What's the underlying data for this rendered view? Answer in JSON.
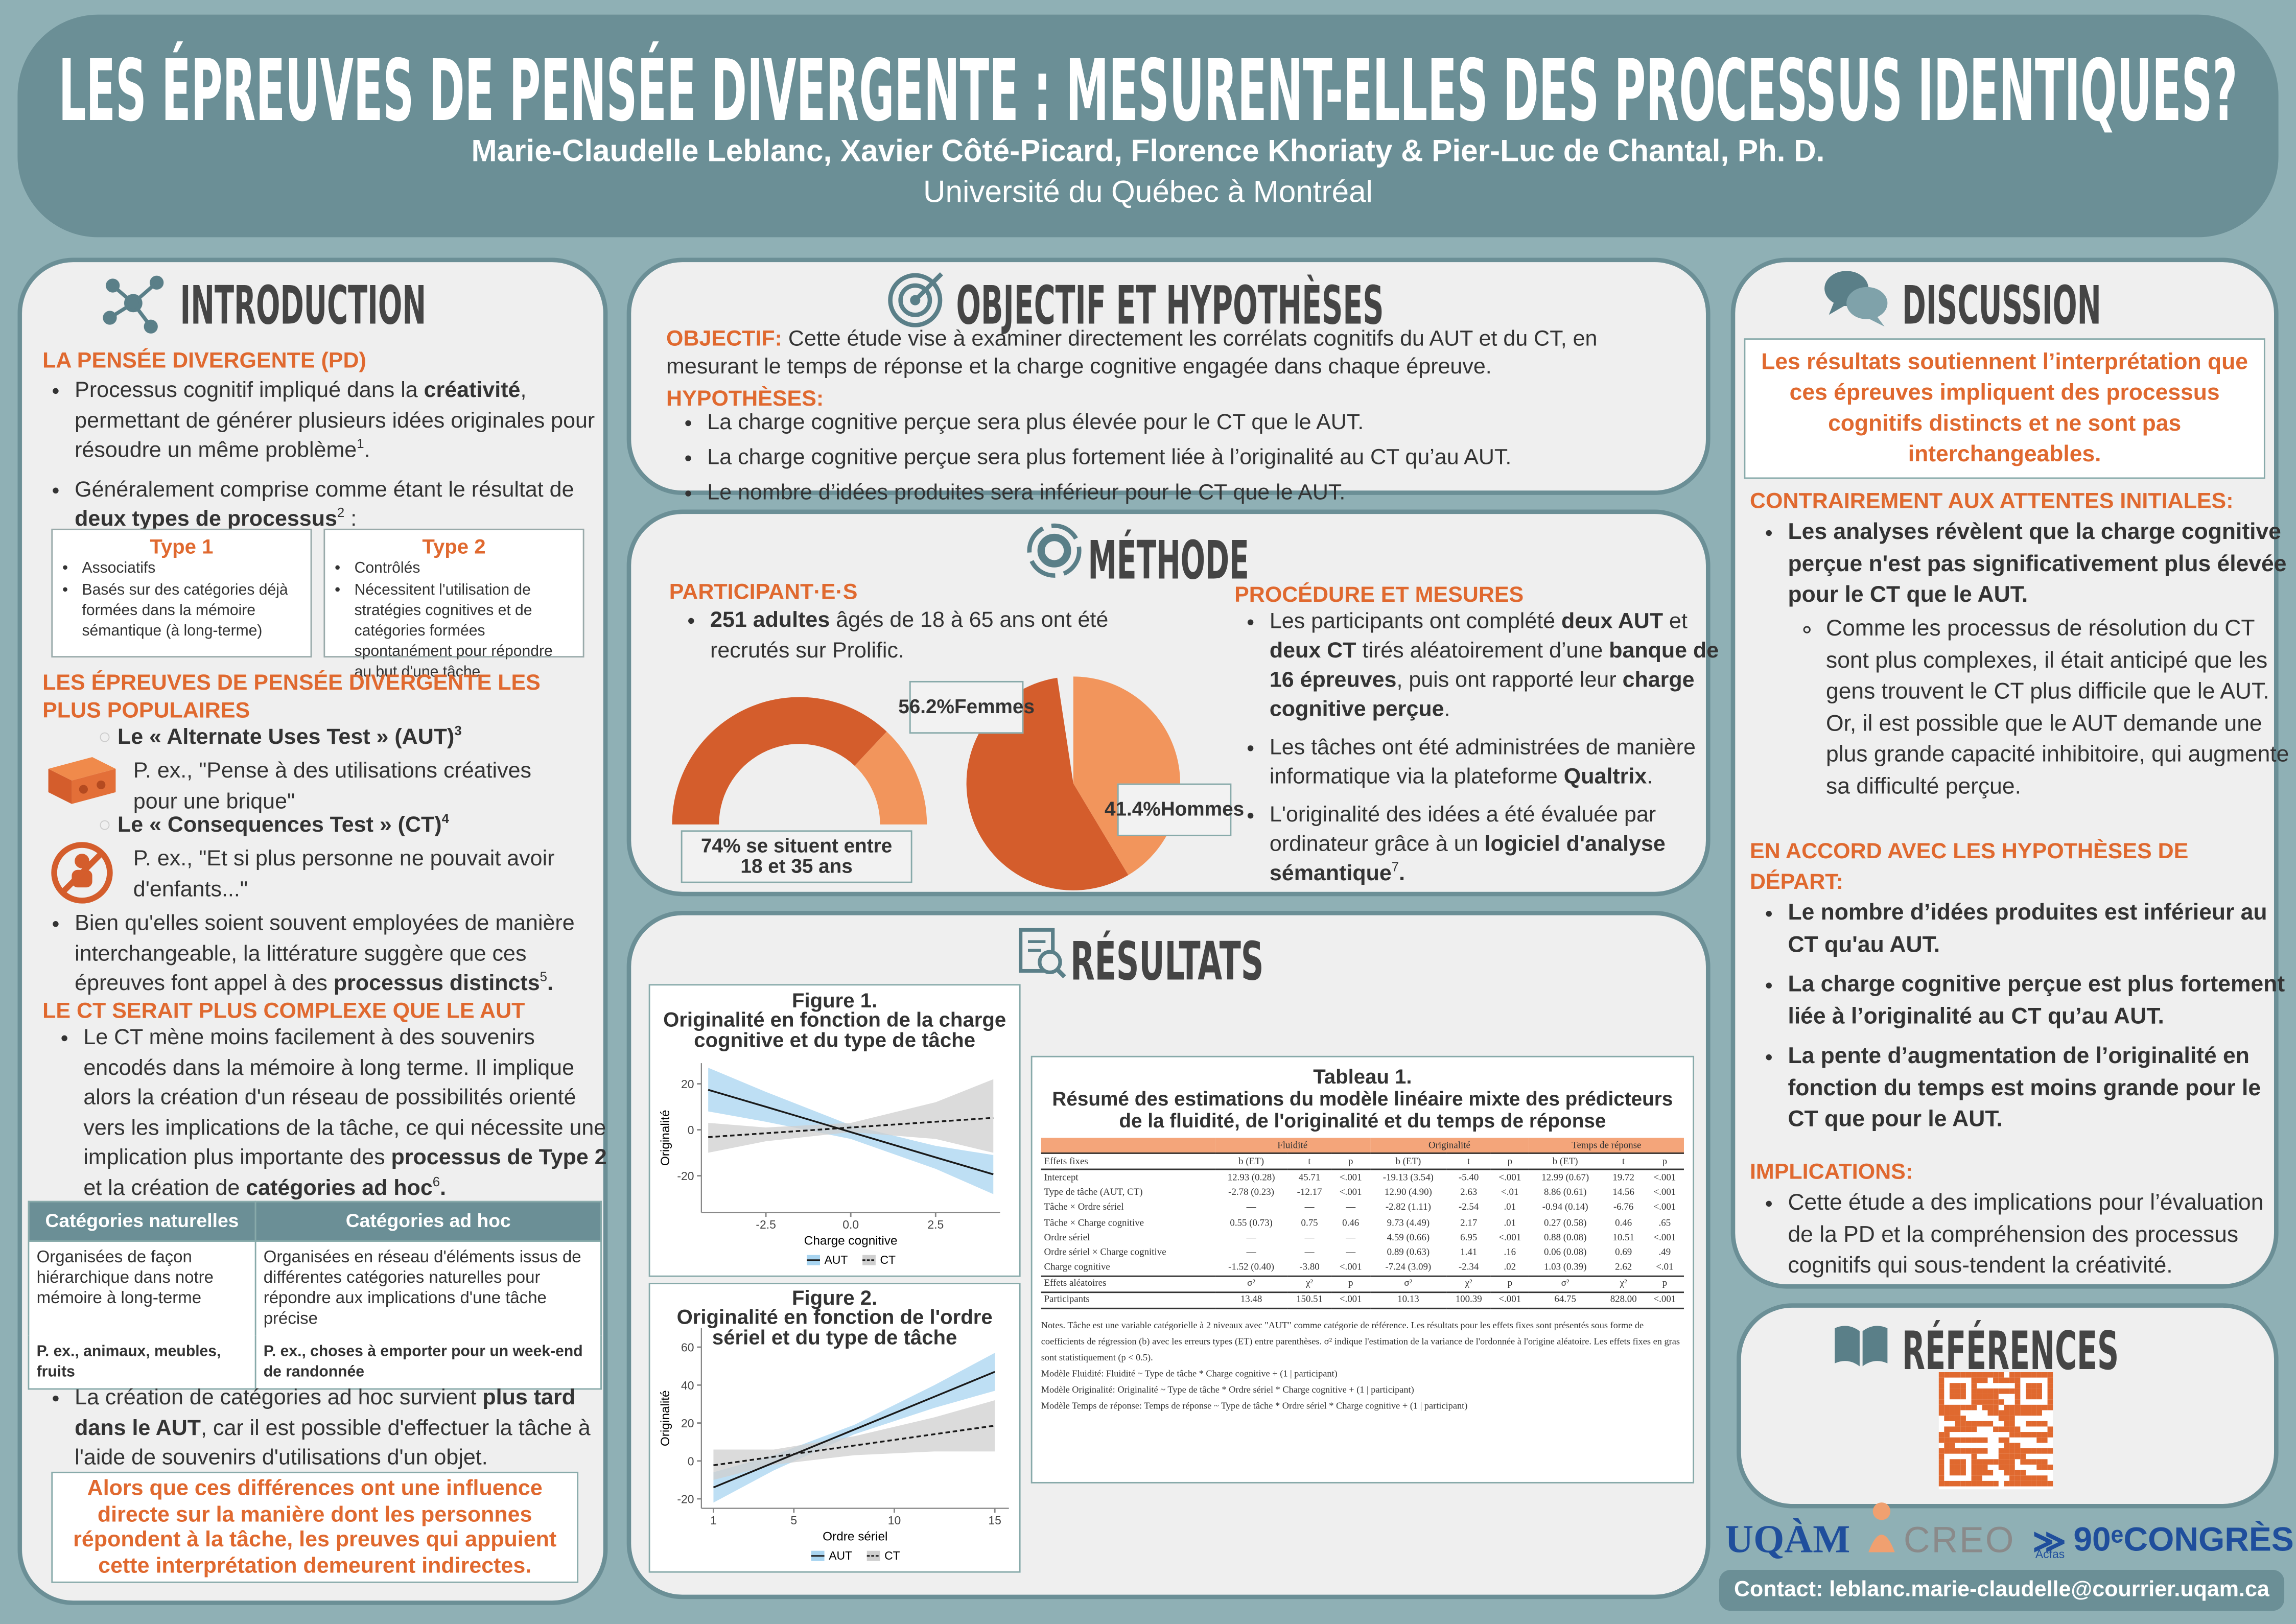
{
  "header": {
    "title": "LES ÉPREUVES DE PENSÉE DIVERGENTE : MESURENT-ELLES DES PROCESSUS IDENTIQUES?",
    "authors": "Marie-Claudelle Leblanc, Xavier Côté-Picard, Florence Khoriaty & Pier-Luc de Chantal, Ph. D.",
    "affiliation": "Université du Québec à Montréal"
  },
  "introduction": {
    "heading": "INTRODUCTION",
    "pd_heading": "LA PENSÉE DIVERGENTE (PD)",
    "pd_bullets": [
      [
        "Processus cognitif impliqué dans la ",
        {
          "b": "créativité"
        },
        ", permettant de générer plusieurs idées originales pour résoudre un même problème",
        {
          "sup": "1"
        },
        "."
      ],
      [
        "Généralement comprise comme étant le résultat  de ",
        {
          "b": "deux types de processus"
        },
        {
          "sup": "2"
        },
        " :"
      ]
    ],
    "types": [
      {
        "title": "Type 1",
        "items": [
          "Associatifs",
          "Basés sur des catégories déjà formées dans la mémoire sémantique (à long-terme)"
        ]
      },
      {
        "title": "Type 2",
        "items": [
          "Contrôlés",
          "Nécessitent l'utilisation de stratégies cognitives et de catégories formées spontanément pour répondre au but d'une tâche"
        ]
      }
    ],
    "tests_heading": "LES ÉPREUVES DE PENSÉE DIVERGENTE LES PLUS POPULAIRES",
    "tests": [
      {
        "name": [
          "Le « Alternate Uses Test » (AUT)",
          {
            "sup": "3"
          }
        ],
        "example": "P. ex., \"Pense à des utilisations créatives pour une brique\""
      },
      {
        "name": [
          "Le « Consequences Test » (CT)",
          {
            "sup": "4"
          }
        ],
        "example": "P. ex., \"Et si plus personne ne pouvait avoir d'enfants...\""
      }
    ],
    "tests_bullet": [
      [
        "Bien qu'elles soient souvent employées de manière interchangeable, la littérature suggère que ces épreuves font appel à des ",
        {
          "b": "processus distincts"
        },
        {
          "sup": "5"
        },
        {
          "b": "."
        }
      ]
    ],
    "ct_heading": "LE CT SERAIT PLUS COMPLEXE QUE LE AUT",
    "ct_bullet": [
      [
        "Le CT mène moins facilement à des souvenirs encodés dans la mémoire à long terme. Il implique alors la création d'un réseau de possibilités orienté vers les implications de la tâche, ce qui nécessite une implication plus importante des ",
        {
          "b": "processus de Type 2"
        },
        " et la création de ",
        {
          "b": "catégories ad hoc"
        },
        {
          "sup": "6"
        },
        {
          "b": "."
        }
      ]
    ],
    "categories_table": {
      "headers": [
        "Catégories naturelles",
        "Catégories ad hoc"
      ],
      "rows": [
        [
          "Organisées de façon hiérarchique dans notre mémoire à long-terme",
          "Organisées en réseau d'éléments issus de différentes catégories naturelles pour répondre aux implications d'une tâche précise"
        ],
        [
          "P. ex., animaux, meubles, fruits",
          "P. ex., choses à emporter pour un  week-end de randonnée"
        ]
      ]
    },
    "adhoc_bullet": [
      [
        "La création de catégories ad hoc survient ",
        {
          "b": "plus tard dans le AUT"
        },
        ", car il est possible d'effectuer la tâche à l'aide de souvenirs d'utilisations d'un objet."
      ]
    ],
    "callout": "Alors que ces différences ont une influence directe sur la manière dont les personnes répondent à la tâche, les preuves qui appuient cette interprétation demeurent indirectes."
  },
  "objectif": {
    "heading": "OBJECTIF ET HYPOTHÈSES",
    "objective_label": "OBJECTIF:",
    "objective": "Cette étude vise à examiner directement les corrélats cognitifs du AUT et du CT, en mesurant le temps de réponse et la charge cognitive engagée dans chaque épreuve.",
    "hypotheses_label": "HYPOTHÈSES:",
    "hypotheses": [
      "La charge cognitive perçue sera plus élevée pour le CT que le AUT.",
      "La charge cognitive perçue sera plus fortement liée à l’originalité au CT qu’au AUT.",
      "Le nombre d’idées produites sera inférieur pour le CT que le AUT."
    ]
  },
  "methode": {
    "heading": "MÉTHODE",
    "participants_heading": "PARTICIPANT·E·S",
    "participants": [
      [
        {
          "b": "251 adultes"
        },
        " âgés de 18 à 65 ans ont été recrutés sur Prolific."
      ]
    ],
    "procedure_heading": "PROCÉDURE ET MESURES",
    "procedure": [
      [
        "Les participants ont complété ",
        {
          "b": "deux AUT"
        },
        " et ",
        {
          "b": "deux CT"
        },
        " tirés aléatoirement d’une ",
        {
          "b": "banque de 16 épreuves"
        },
        ",  puis ont rapporté leur ",
        {
          "b": "charge cognitive perçue"
        },
        "."
      ],
      [
        "Les tâches ont été administrées de manière informatique via la plateforme ",
        {
          "b": "Qualtrix"
        },
        "."
      ],
      [
        "L'originalité des idées a été évaluée par ordinateur grâce à un ",
        {
          "b": "logiciel d'analyse sémantique"
        },
        {
          "sup": "7"
        },
        {
          "b": "."
        }
      ]
    ]
  },
  "chart_data": [
    {
      "type": "gauge",
      "values": [
        74
      ],
      "annotation": "74% se situent entre\n18 et 35 ans",
      "colors": [
        "#d45d2c",
        "#f2955c"
      ]
    },
    {
      "type": "pie",
      "categories": [
        "Femmes",
        "Hommes"
      ],
      "values": [
        56.2,
        41.4
      ],
      "value_labels": [
        "56.2%",
        "41.4%"
      ],
      "colors": [
        "#d45d2c",
        "#f2955c"
      ]
    },
    {
      "type": "line",
      "title": "Figure 1.",
      "subtitle": "Originalité en fonction de la charge cognitive et du type de tâche",
      "xlabel": "Charge cognitive",
      "ylabel": "Originalité",
      "x": [
        -4.2,
        -2.5,
        0,
        2.5,
        4.2
      ],
      "xlim": [
        -4.4,
        4.4
      ],
      "ylim": [
        -36,
        29
      ],
      "xticks": [
        -2.5,
        {
          "value": 0,
          "label": "0.0"
        },
        2.5
      ],
      "yticks": [
        -20,
        0,
        20
      ],
      "series": [
        {
          "name": "AUT",
          "color": "#a8d4f0",
          "line_color": "#1a1a1a",
          "dashed": false,
          "values": [
            17.4,
            10.0,
            -1.0,
            -12.0,
            -19.4
          ],
          "upper": [
            27,
            16.5,
            2,
            -7,
            -11
          ],
          "lower": [
            8,
            3.5,
            -4,
            -17,
            -28
          ]
        },
        {
          "name": "CT",
          "color": "#cfcfcf",
          "line_color": "#1a1a1a",
          "dashed": true,
          "values": [
            -3.2,
            -1.5,
            1.0,
            3.5,
            5.2
          ],
          "upper": [
            3,
            1,
            3,
            12,
            22
          ],
          "lower": [
            -10,
            -5,
            -1,
            -4,
            -10
          ]
        }
      ]
    },
    {
      "type": "line",
      "title": "Figure 2.",
      "subtitle": "Originalité en fonction de l'ordre sériel et du type de tâche",
      "xlabel": "Ordre sériel",
      "ylabel": "Originalité",
      "x": [
        1,
        4,
        8,
        12,
        15
      ],
      "xlim": [
        0.4,
        15.7
      ],
      "ylim": [
        -25,
        70
      ],
      "xticks": [
        1,
        5,
        10,
        15
      ],
      "yticks": [
        -20,
        0,
        20,
        40,
        60
      ],
      "series": [
        {
          "name": "AUT",
          "color": "#a8d4f0",
          "line_color": "#1a1a1a",
          "dashed": false,
          "values": [
            -14,
            -0.9,
            16.5,
            33.9,
            47
          ],
          "upper": [
            -6,
            3,
            19,
            40,
            57
          ],
          "lower": [
            -22,
            -5,
            14,
            28,
            37
          ]
        },
        {
          "name": "CT",
          "color": "#cfcfcf",
          "line_color": "#1a1a1a",
          "dashed": true,
          "values": [
            -2.3,
            2.2,
            8.1,
            14.1,
            18.6
          ],
          "upper": [
            6,
            6,
            13,
            23,
            32
          ],
          "lower": [
            -10,
            -2,
            3,
            5,
            5
          ]
        }
      ]
    }
  ],
  "resultats": {
    "heading": "RÉSULTATS",
    "table1": {
      "title": "Tableau 1.",
      "subtitle": "Résumé des estimations du modèle linéaire mixte des prédicteurs de la fluidité, de l'originalité et du temps de réponse",
      "groups": [
        "Fluidité",
        "Originalité",
        "Temps de réponse"
      ],
      "columns": [
        "Effets fixes",
        "b (ET)",
        "t",
        "p",
        "b (ET)",
        "t",
        "p",
        "b (ET)",
        "t",
        "p"
      ],
      "rows": [
        [
          "Intercept",
          "12.93 (0.28)",
          "45.71",
          "<.001",
          "-19.13 (3.54)",
          "-5.40",
          "<.001",
          "12.99 (0.67)",
          "19.72",
          "<.001"
        ],
        [
          "Type de tâche (AUT, CT)",
          "-2.78 (0.23)",
          "-12.17",
          "<.001",
          "12.90 (4.90)",
          "2.63",
          "<.01",
          "8.86 (0.61)",
          "14.56",
          "<.001"
        ],
        [
          "Tâche × Ordre sériel",
          "—",
          "—",
          "—",
          "-2.82 (1.11)",
          "-2.54",
          ".01",
          "-0.94 (0.14)",
          "-6.76",
          "<.001"
        ],
        [
          "Tâche × Charge cognitive",
          "0.55 (0.73)",
          "0.75",
          "0.46",
          "9.73 (4.49)",
          "2.17",
          ".01",
          "0.27 (0.58)",
          "0.46",
          ".65"
        ],
        [
          "Ordre sériel",
          "—",
          "—",
          "—",
          "4.59 (0.66)",
          "6.95",
          "<.001",
          "0.88 (0.08)",
          "10.51",
          "<.001"
        ],
        [
          "Ordre sériel × Charge cognitive",
          "—",
          "—",
          "—",
          "0.89 (0.63)",
          "1.41",
          ".16",
          "0.06 (0.08)",
          "0.69",
          ".49"
        ],
        [
          "Charge cognitive",
          "-1.52 (0.40)",
          "-3.80",
          "<.001",
          "-7.24 (3.09)",
          "-2.34",
          ".02",
          "1.03 (0.39)",
          "2.62",
          "<.01"
        ]
      ],
      "random_columns": [
        "Effets aléatoires",
        "σ²",
        "χ²",
        "p",
        "σ²",
        "χ²",
        "p",
        "σ²",
        "χ²",
        "p"
      ],
      "random_rows": [
        [
          "Participants",
          "13.48",
          "150.51",
          "<.001",
          "10.13",
          "100.39",
          "<.001",
          "64.75",
          "828.00",
          "<.001"
        ]
      ],
      "notes": [
        "Notes. Tâche est une variable catégorielle à 2 niveaux avec \"AUT\" comme catégorie de référence. Les résultats pour les effets fixes sont présentés sous forme de coefficients de régression (b) avec les erreurs types (ET) entre parenthèses. σ² indique l'estimation de la variance de l'ordonnée à l'origine aléatoire. Les effets fixes en gras sont statistiquement (p < 0.5).",
        "Modèle Fluidité: Fluidité ~ Type de tâche * Charge cognitive + (1 | participant)",
        "Modèle Originalité: Originalité ~ Type de tâche * Ordre sériel * Charge cognitive + (1 | participant)",
        "Modèle Temps de réponse: Temps de réponse ~ Type de tâche * Ordre sériel * Charge cognitive + (1 | participant)"
      ]
    }
  },
  "discussion": {
    "heading": "DISCUSSION",
    "callout": "Les résultats soutiennent l’interprétation que ces épreuves impliquent des processus cognitifs distincts et ne sont pas interchangeables.",
    "contrary_heading": "CONTRAIREMENT AUX ATTENTES INITIALES:",
    "contrary": [
      "Les analyses révèlent que la charge cognitive perçue n'est pas significativement plus élevée pour le CT que le AUT."
    ],
    "contrary_sub": [
      "Comme les processus de résolution du CT sont plus complexes, il était anticipé que les gens trouvent le CT plus difficile que le AUT.  Or, il est possible que le AUT demande une plus grande capacité inhibitoire, qui augmente sa difficulté perçue."
    ],
    "accord_heading": "EN ACCORD AVEC LES HYPOTHÈSES DE DÉPART:",
    "accord": [
      "Le nombre d’idées produites est inférieur au CT qu'au AUT.",
      "La charge cognitive perçue est plus fortement liée à l’originalité au CT qu’au AUT.",
      "La pente d’augmentation de l’originalité en fonction du temps est moins grande pour le CT que pour le AUT."
    ],
    "implications_heading": "IMPLICATIONS:",
    "implications": [
      "Cette étude a des implications pour l’évaluation de la PD et la compréhension des processus cognitifs qui sous-tendent la créativité."
    ]
  },
  "references": {
    "heading": "RÉFÉRENCES"
  },
  "logos": [
    "UQÀM",
    "CREO",
    "Acfas",
    "90ᵉCONGRÈS"
  ],
  "contact": "Contact: leblanc.marie-claudelle@courrier.uqam.ca"
}
